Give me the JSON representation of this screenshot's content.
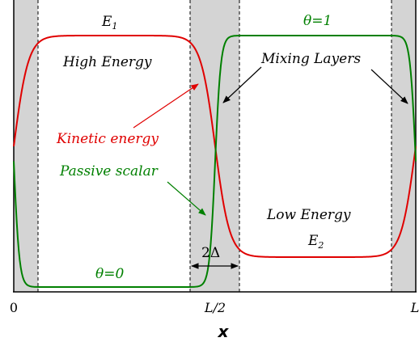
{
  "labels": {
    "e1_base": "E",
    "e1_sub": "1",
    "e2_base": "E",
    "e2_sub": "2",
    "theta_one": "θ=1",
    "theta_zero": "θ=0",
    "high_energy": "High Energy",
    "low_energy": "Low Energy",
    "mixing_layers": "Mixing Layers",
    "kinetic_energy": "Kinetic energy",
    "passive_scalar": "Passive scalar",
    "delta_width": "2Δ"
  },
  "axis": {
    "xlabel": "x",
    "ticks": [
      "0",
      "L/2",
      "L"
    ]
  },
  "colors": {
    "kinetic": "#e00000",
    "scalar": "#008000",
    "band": "#d4d4d4",
    "ink": "#000000"
  }
}
